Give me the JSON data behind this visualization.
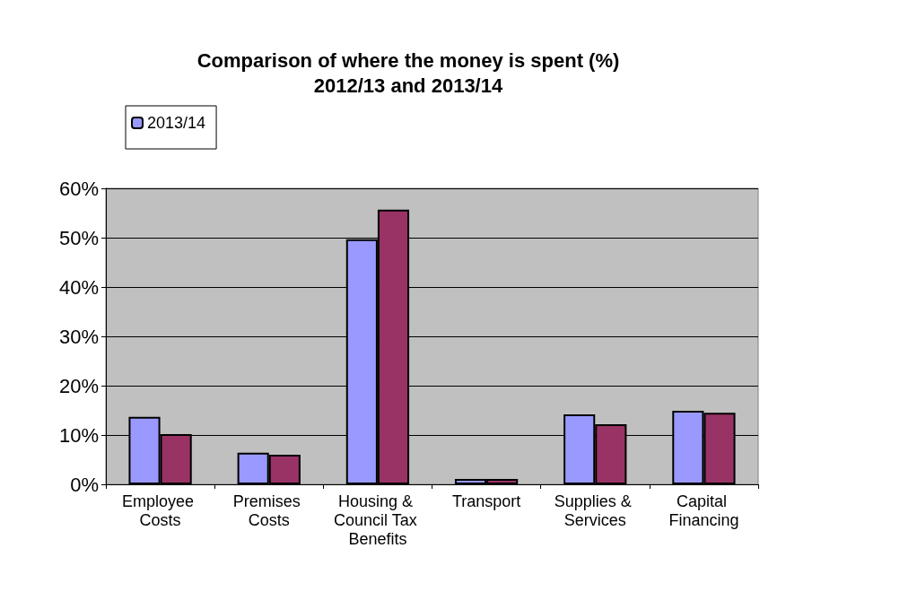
{
  "chart_data": {
    "type": "bar",
    "title": "Comparison of where the money is spent (%)\n2012/13 and 2013/14",
    "categories": [
      "Employee Costs",
      "Premises Costs",
      "Housing & Council Tax Benefits",
      "Transport",
      "Supplies & Services",
      "Capital Financing"
    ],
    "series": [
      {
        "name": "2013/14",
        "color": "#9999ff",
        "values": [
          13.7,
          6.4,
          49.7,
          1.1,
          14.2,
          14.9
        ]
      },
      {
        "color": "#993366",
        "values": [
          10.2,
          6.0,
          55.7,
          1.1,
          12.2,
          14.5
        ]
      }
    ],
    "ylim": [
      0,
      60
    ],
    "yticks": [
      {
        "value": 0,
        "label": "0%"
      },
      {
        "value": 10,
        "label": "10%"
      },
      {
        "value": 20,
        "label": "20%"
      },
      {
        "value": 30,
        "label": "30%"
      },
      {
        "value": 40,
        "label": "40%"
      },
      {
        "value": 50,
        "label": "50%"
      },
      {
        "value": 60,
        "label": "60%"
      }
    ],
    "grid": "y",
    "legend": "top left"
  }
}
